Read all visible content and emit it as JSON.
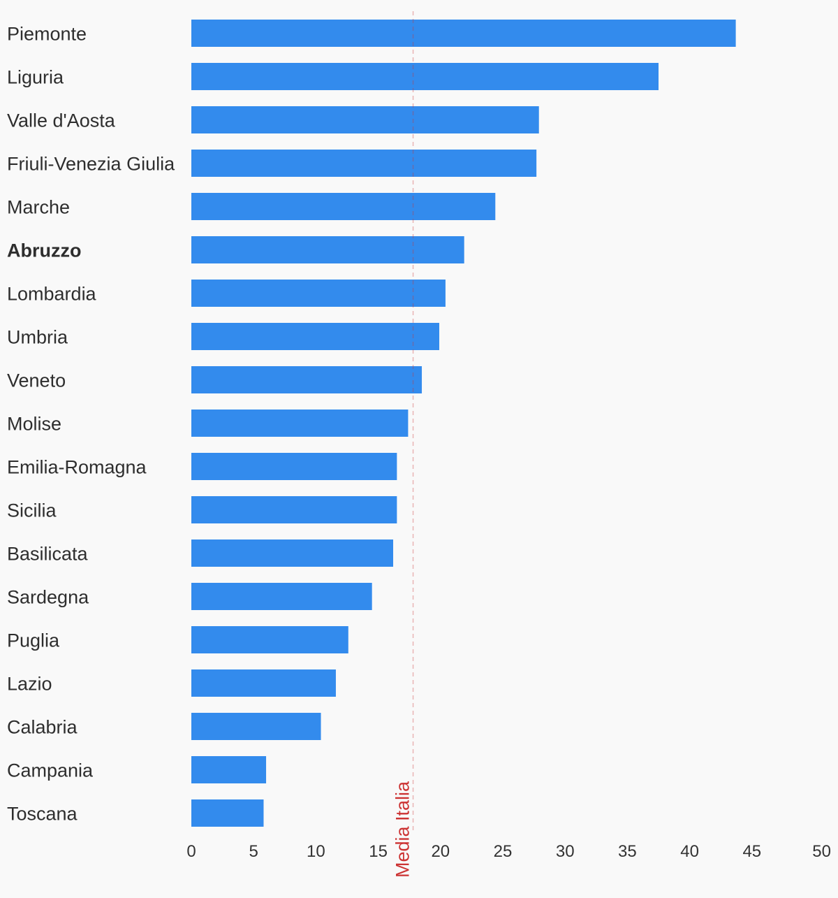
{
  "chart_data": {
    "type": "bar",
    "orientation": "horizontal",
    "categories": [
      "Piemonte",
      "Liguria",
      "Valle d'Aosta",
      "Friuli-Venezia Giulia",
      "Marche",
      "Abruzzo",
      "Lombardia",
      "Umbria",
      "Veneto",
      "Molise",
      "Emilia-Romagna",
      "Sicilia",
      "Basilicata",
      "Sardegna",
      "Puglia",
      "Lazio",
      "Calabria",
      "Campania",
      "Toscana"
    ],
    "values": [
      43.7,
      37.5,
      27.9,
      27.7,
      24.4,
      21.9,
      20.4,
      19.9,
      18.5,
      17.4,
      16.5,
      16.5,
      16.2,
      14.5,
      12.6,
      11.6,
      10.4,
      6.0,
      5.8
    ],
    "highlight_category": "Abruzzo",
    "title": "",
    "xlabel": "",
    "ylabel": "",
    "xlim": [
      0,
      50
    ],
    "xticks": [
      "0",
      "5",
      "10",
      "15",
      "20",
      "25",
      "30",
      "35",
      "40",
      "45",
      "50"
    ],
    "reference_line": {
      "label": "Media Italia",
      "value": 17.8,
      "style": "dashed",
      "color": "#cc3333"
    },
    "bar_color": "#338bed",
    "grid": false,
    "legend": "none"
  }
}
